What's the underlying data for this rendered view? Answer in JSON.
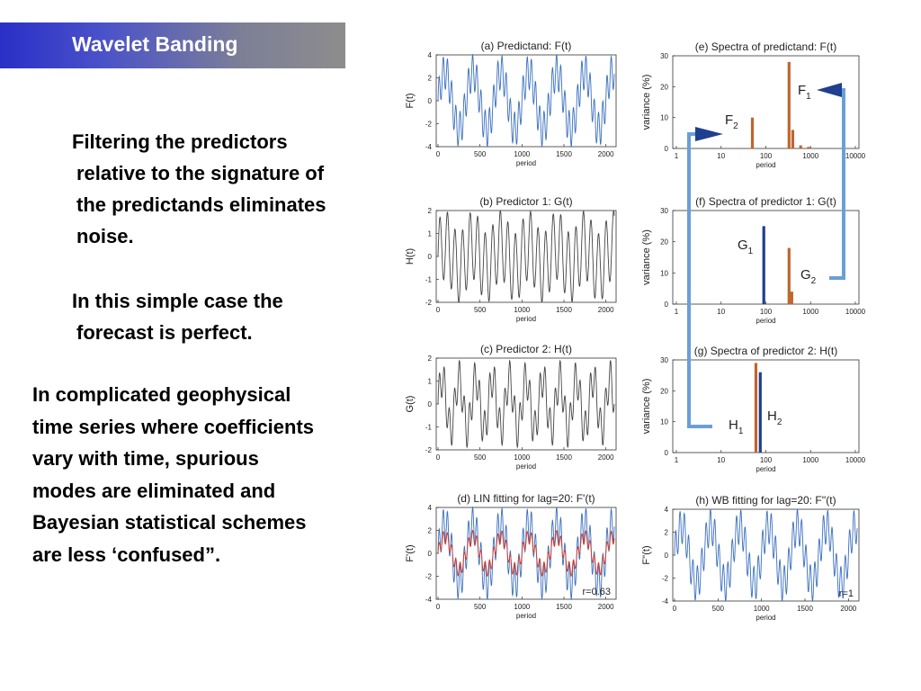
{
  "slide": {
    "title": "Wavelet Banding",
    "p1_lines": [
      "Filtering the predictors",
      "relative to the signature of",
      "the predictands eliminates",
      "noise."
    ],
    "p2_lines": [
      "In this simple case the",
      "forecast is perfect."
    ],
    "p3_lines": [
      "In complicated geophysical",
      "time series where coefficients",
      "vary with time, spurious",
      "modes are eliminated and",
      "Bayesian statistical schemes",
      "are less ‘confused”."
    ]
  },
  "figure": {
    "colors": {
      "blue": "#3a6fbf",
      "red": "#d23a2a",
      "gray": "#444444",
      "orange": "#c0652e",
      "navy": "#1f3f8f",
      "arrow": "#6a9fd6"
    },
    "panels": [
      {
        "id": "a",
        "title": "(a) Predictand:   F(t)",
        "ylabel": "F(t)",
        "yticks": [
          "4",
          "2",
          "0",
          "-2",
          "-4"
        ],
        "ylim": [
          -4,
          4
        ],
        "xticks": [
          "0",
          "500",
          "1000",
          "1500",
          "2000"
        ],
        "xlabel": "period"
      },
      {
        "id": "b",
        "title": "(b) Predictor 1:   G(t)",
        "ylabel": "H(t)",
        "yticks": [
          "2",
          "1",
          "0",
          "-1",
          "-2"
        ],
        "ylim": [
          -2,
          2
        ],
        "xticks": [
          "0",
          "500",
          "1000",
          "1500",
          "2000"
        ],
        "xlabel": "period"
      },
      {
        "id": "c",
        "title": "(c) Predictor 2:   H(t)",
        "ylabel": "G(t)",
        "yticks": [
          "2",
          "1",
          "0",
          "-1",
          "-2"
        ],
        "ylim": [
          -2,
          2
        ],
        "xticks": [
          "0",
          "500",
          "1000",
          "1500",
          "2000"
        ],
        "xlabel": "period"
      },
      {
        "id": "d",
        "title": "(d) LIN fitting for lag=20:  F'(t)",
        "ylabel": "F'(t)",
        "yticks": [
          "4",
          "2",
          "0",
          "-2",
          "-4"
        ],
        "ylim": [
          -4,
          4
        ],
        "xticks": [
          "0",
          "500",
          "1000",
          "1500",
          "2000"
        ],
        "xlabel": "period",
        "note": "r=0.63"
      },
      {
        "id": "e",
        "title": "(e) Spectra of predictand:  F(t)",
        "ylabel": "variance (%)",
        "yticks": [
          "30",
          "20",
          "10",
          "0"
        ],
        "ylim": [
          0,
          30
        ],
        "xticks": [
          "1",
          "10",
          "100",
          "1000",
          "10000"
        ],
        "xlabel": "period",
        "label_f1": "F",
        "label_f1_sub": "1",
        "label_f2": "F",
        "label_f2_sub": "2"
      },
      {
        "id": "f",
        "title": "(f) Spectra of predictor 1: G(t)",
        "ylabel": "variance (%)",
        "yticks": [
          "30",
          "20",
          "10",
          "0"
        ],
        "ylim": [
          0,
          30
        ],
        "xticks": [
          "1",
          "10",
          "100",
          "1000",
          "10000"
        ],
        "xlabel": "period",
        "label_g1": "G",
        "label_g1_sub": "1",
        "label_g2": "G",
        "label_g2_sub": "2"
      },
      {
        "id": "g",
        "title": "(g) Spectra of predictor 2:   H(t)",
        "ylabel": "variance (%)",
        "yticks": [
          "30",
          "20",
          "10",
          "0"
        ],
        "ylim": [
          0,
          30
        ],
        "xticks": [
          "1",
          "10",
          "100",
          "1000",
          "10000"
        ],
        "xlabel": "period",
        "label_h1": "H",
        "label_h1_sub": "1",
        "label_h2": "H",
        "label_h2_sub": "2"
      },
      {
        "id": "h",
        "title": "(h) WB fitting for lag=20:  F''(t)",
        "ylabel": "F''(t)",
        "yticks": [
          "4",
          "2",
          "0",
          "-2",
          "-4"
        ],
        "ylim": [
          -4,
          4
        ],
        "xticks": [
          "0",
          "500",
          "1000",
          "1500",
          "2000"
        ],
        "xlabel": "period",
        "note": "r=1"
      }
    ]
  },
  "chart_data": [
    {
      "type": "line",
      "title": "(a) Predictand:   F(t)",
      "xlabel": "period",
      "ylabel": "F(t)",
      "xlim": [
        0,
        2100
      ],
      "ylim": [
        -4,
        4
      ],
      "series": [
        {
          "components": [
            {
              "amplitude": 2.5,
              "period": 333
            },
            {
              "amplitude": 1.5,
              "period": 50
            }
          ]
        }
      ]
    },
    {
      "type": "line",
      "title": "(b) Predictor 1:   G(t)",
      "xlabel": "period",
      "ylabel": "H(t)",
      "xlim": [
        0,
        2100
      ],
      "ylim": [
        -2,
        2
      ],
      "series": [
        {
          "components": [
            {
              "amplitude": 0.5,
              "period": 333
            },
            {
              "amplitude": 1.5,
              "period": 90
            }
          ]
        }
      ]
    },
    {
      "type": "line",
      "title": "(c) Predictor 2:   H(t)",
      "xlabel": "period",
      "ylabel": "G(t)",
      "xlim": [
        0,
        2100
      ],
      "ylim": [
        -2,
        2
      ],
      "series": [
        {
          "components": [
            {
              "amplitude": 1.1,
              "period": 200
            },
            {
              "amplitude": 0.8,
              "period": 60
            }
          ]
        }
      ]
    },
    {
      "type": "line",
      "title": "(d) LIN fitting for lag=20:  F'(t)",
      "xlabel": "period",
      "ylabel": "F'(t)",
      "xlim": [
        0,
        2100
      ],
      "ylim": [
        -4,
        4
      ],
      "series": [
        {
          "color": "blue",
          "components": [
            {
              "amplitude": 2.5,
              "period": 333
            },
            {
              "amplitude": 1.5,
              "period": 50
            }
          ]
        },
        {
          "color": "red",
          "components": [
            {
              "amplitude": 1.4,
              "period": 333
            },
            {
              "amplitude": 0.6,
              "period": 50
            }
          ]
        }
      ],
      "annotation": "r=0.63"
    },
    {
      "type": "bar",
      "title": "(e) Spectra of predictand:  F(t)",
      "xlabel": "period",
      "ylabel": "variance (%)",
      "xscale": "log",
      "xlim": [
        1,
        10000
      ],
      "ylim": [
        0,
        30
      ],
      "series": [
        {
          "color": "orange",
          "points": [
            {
              "x": 50,
              "y": 10
            },
            {
              "x": 330,
              "y": 28
            },
            {
              "x": 400,
              "y": 6
            },
            {
              "x": 600,
              "y": 1
            },
            {
              "x": 900,
              "y": 0.5
            }
          ]
        }
      ]
    },
    {
      "type": "bar",
      "title": "(f) Spectra of predictor 1: G(t)",
      "xlabel": "period",
      "ylabel": "variance (%)",
      "xscale": "log",
      "xlim": [
        1,
        10000
      ],
      "ylim": [
        0,
        30
      ],
      "series": [
        {
          "color": "navy",
          "points": [
            {
              "x": 90,
              "y": 25
            }
          ]
        },
        {
          "color": "orange",
          "points": [
            {
              "x": 330,
              "y": 18
            },
            {
              "x": 380,
              "y": 4
            }
          ]
        }
      ]
    },
    {
      "type": "bar",
      "title": "(g) Spectra of predictor 2:   H(t)",
      "xlabel": "period",
      "ylabel": "variance (%)",
      "xscale": "log",
      "xlim": [
        1,
        10000
      ],
      "ylim": [
        0,
        30
      ],
      "series": [
        {
          "color": "orange",
          "points": [
            {
              "x": 60,
              "y": 29
            }
          ]
        },
        {
          "color": "navy",
          "points": [
            {
              "x": 75,
              "y": 26
            }
          ]
        }
      ]
    },
    {
      "type": "line",
      "title": "(h) WB fitting for lag=20:  F''(t)",
      "xlabel": "period",
      "ylabel": "F''(t)",
      "xlim": [
        0,
        2100
      ],
      "ylim": [
        -4,
        4
      ],
      "series": [
        {
          "color": "blue",
          "components": [
            {
              "amplitude": 2.5,
              "period": 333
            },
            {
              "amplitude": 1.5,
              "period": 50
            }
          ]
        }
      ],
      "annotation": "r=1"
    }
  ]
}
